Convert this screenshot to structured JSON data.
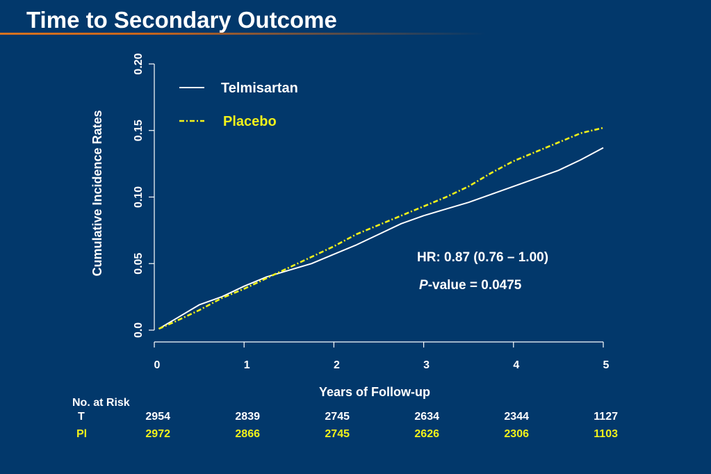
{
  "title": "Time to Secondary Outcome",
  "colors": {
    "background": "#02386b",
    "telmisartan": "#ffffff",
    "placebo": "#f2f21a",
    "title_rule": "#d9731f"
  },
  "annotations": {
    "hr": "HR: 0.87 (0.76 – 1.00)",
    "p_italic": "P",
    "p_rest": "-value = 0.0475"
  },
  "risk_table": {
    "heading": "No. at Risk",
    "rows": [
      {
        "label": "T",
        "color": "#ffffff",
        "values": [
          "2954",
          "2839",
          "2745",
          "2634",
          "2344",
          "1127"
        ]
      },
      {
        "label": "Pl",
        "color": "#f2f21a",
        "values": [
          "2972",
          "2866",
          "2745",
          "2626",
          "2306",
          "1103"
        ]
      }
    ]
  },
  "chart_data": {
    "type": "line",
    "xlabel": "Years of Follow-up",
    "ylabel": "Cumulative Incidence Rates",
    "xlim": [
      0,
      5
    ],
    "ylim": [
      0,
      0.2
    ],
    "xticks": [
      0,
      1,
      2,
      3,
      4,
      5
    ],
    "xtick_labels": [
      "0",
      "1",
      "2",
      "3",
      "4",
      "5"
    ],
    "yticks": [
      0,
      0.05,
      0.1,
      0.15,
      0.2
    ],
    "ytick_labels": [
      "0.0",
      "0.05",
      "0.10",
      "0.15",
      "0.20"
    ],
    "grid": false,
    "legend_position": "top-left",
    "series": [
      {
        "name": "Telmisartan",
        "color": "#ffffff",
        "dash": "solid",
        "x": [
          0.05,
          0.25,
          0.5,
          0.75,
          1.0,
          1.25,
          1.5,
          1.75,
          2.0,
          2.25,
          2.5,
          2.75,
          3.0,
          3.25,
          3.5,
          3.75,
          4.0,
          4.25,
          4.5,
          4.75,
          5.0
        ],
        "y": [
          0.001,
          0.009,
          0.019,
          0.025,
          0.033,
          0.04,
          0.045,
          0.05,
          0.057,
          0.064,
          0.072,
          0.08,
          0.086,
          0.091,
          0.096,
          0.102,
          0.108,
          0.114,
          0.12,
          0.128,
          0.137
        ]
      },
      {
        "name": "Placebo",
        "color": "#f2f21a",
        "dash": "dashdot",
        "x": [
          0.05,
          0.25,
          0.5,
          0.75,
          1.0,
          1.25,
          1.5,
          1.75,
          2.0,
          2.25,
          2.5,
          2.75,
          3.0,
          3.25,
          3.5,
          3.75,
          4.0,
          4.25,
          4.5,
          4.75,
          5.0
        ],
        "y": [
          0.001,
          0.007,
          0.015,
          0.024,
          0.031,
          0.039,
          0.047,
          0.055,
          0.063,
          0.072,
          0.079,
          0.086,
          0.093,
          0.1,
          0.108,
          0.118,
          0.127,
          0.134,
          0.141,
          0.148,
          0.152
        ]
      }
    ]
  }
}
